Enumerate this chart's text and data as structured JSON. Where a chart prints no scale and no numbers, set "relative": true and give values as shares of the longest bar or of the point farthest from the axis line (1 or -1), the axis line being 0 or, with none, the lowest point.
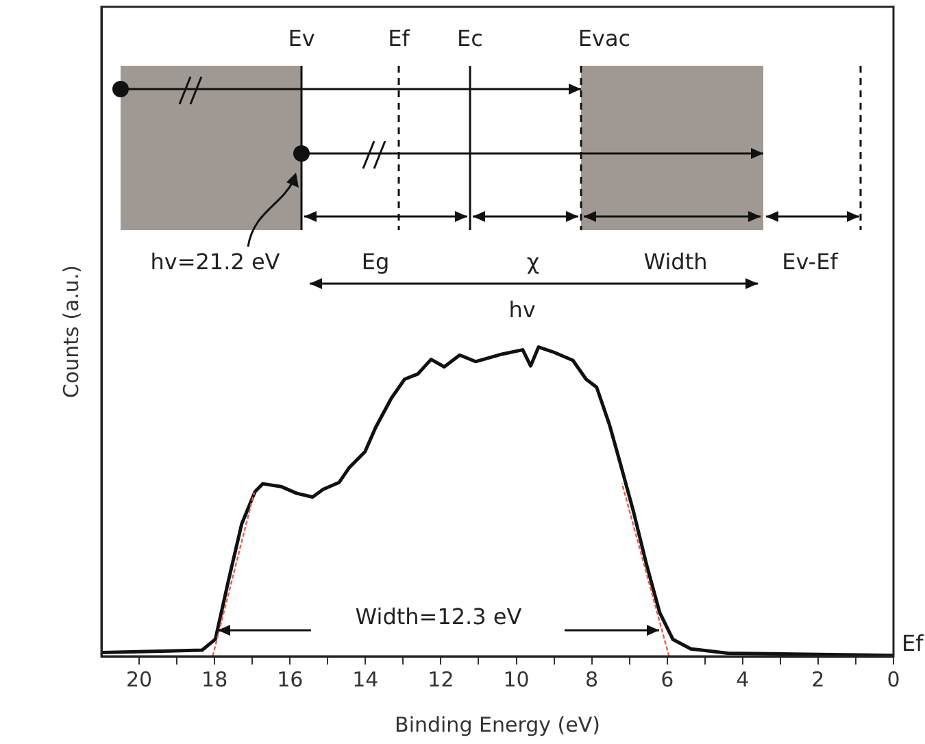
{
  "chart_data": {
    "type": "line",
    "xlabel": "Binding Energy (eV)",
    "ylabel": "Counts (a.u.)",
    "relative": true,
    "xlim": [
      21,
      0
    ],
    "xticks": [
      20,
      {
        "value": 19,
        "label": null
      },
      18,
      {
        "value": 17,
        "label": null
      },
      16,
      {
        "value": 15,
        "label": null
      },
      14,
      {
        "value": 13,
        "label": null
      },
      12,
      {
        "value": 11,
        "label": null
      },
      10,
      {
        "value": 9,
        "label": null
      },
      8,
      {
        "value": 7,
        "label": null
      },
      6,
      {
        "value": 5,
        "label": null
      },
      4,
      {
        "value": 3,
        "label": null
      },
      2,
      {
        "value": 1,
        "label": null
      },
      0
    ],
    "series": [
      {
        "color": "#111111",
        "x": [
          20.98,
          18.33,
          17.98,
          17.63,
          17.28,
          16.93,
          16.72,
          16.24,
          15.82,
          15.4,
          15.12,
          14.7,
          14.43,
          14.01,
          13.73,
          13.31,
          12.96,
          12.61,
          12.26,
          11.91,
          11.5,
          11.08,
          10.38,
          9.83,
          9.62,
          9.41,
          9.0,
          8.5,
          8.15,
          7.87,
          7.53,
          7.25,
          6.9,
          6.55,
          6.2,
          5.85,
          5.37,
          4.39,
          0
        ],
        "values": [
          0.012,
          0.02,
          0.055,
          0.246,
          0.428,
          0.532,
          0.558,
          0.549,
          0.527,
          0.515,
          0.54,
          0.562,
          0.61,
          0.662,
          0.74,
          0.835,
          0.896,
          0.913,
          0.96,
          0.936,
          0.974,
          0.953,
          0.977,
          0.991,
          0.939,
          1.0,
          0.983,
          0.957,
          0.896,
          0.87,
          0.749,
          0.627,
          0.471,
          0.298,
          0.142,
          0.055,
          0.024,
          0.01,
          0.003
        ]
      },
      {
        "color": "#e06050",
        "line_style": "dashed",
        "x": [
          18.05,
          16.95
        ],
        "values": [
          0,
          0.53
        ]
      },
      {
        "color": "#e06050",
        "line_style": "dashed",
        "x": [
          5.95,
          7.2
        ],
        "values": [
          0,
          0.56
        ]
      }
    ],
    "annotations": [
      "Ev",
      "Ef",
      "Ec",
      "Evac",
      "hv=21.2 eV",
      "Eg",
      "χ",
      "Width",
      "Ev-Ef",
      "hv",
      "Width=12.3 eV",
      {
        "text": "Ef",
        "x": 0,
        "y": 0
      }
    ]
  }
}
